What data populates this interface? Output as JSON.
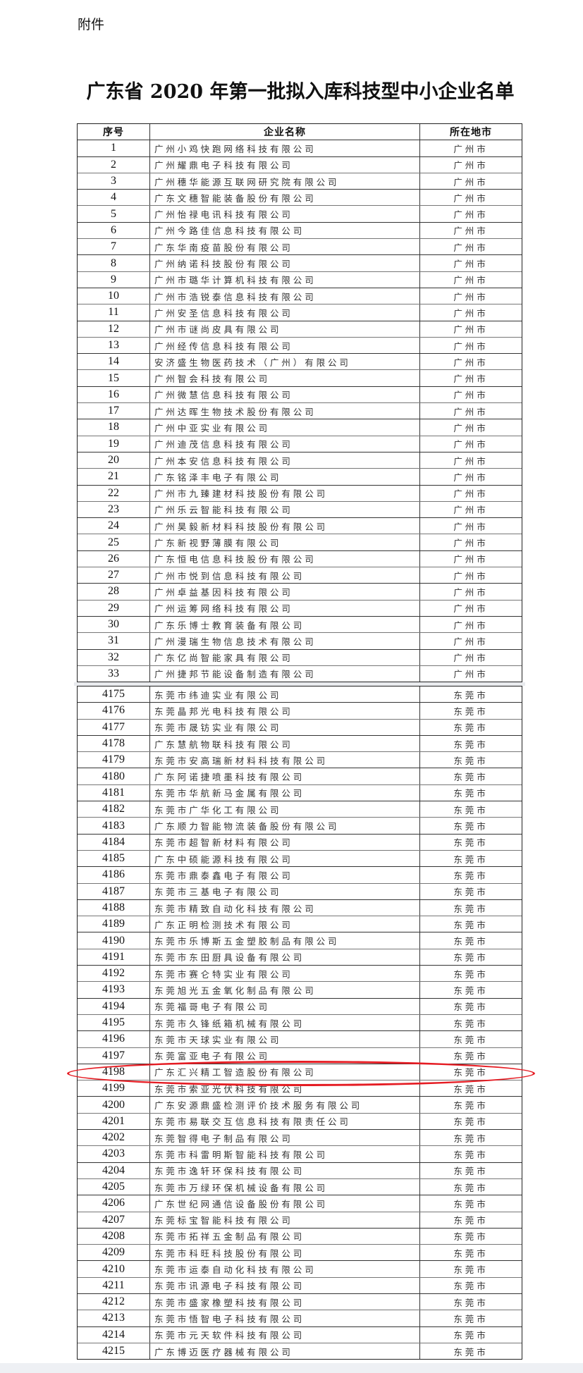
{
  "attachment_label": "附件",
  "title": "广东省 2020 年第一批拟入库科技型中小企业名单",
  "columns": {
    "no": "序号",
    "name": "企业名称",
    "city": "所在地市"
  },
  "highlight_color": "#e51c23",
  "highlighted_row": "4198",
  "section1": [
    {
      "no": "1",
      "name": "广州小鸡快跑网络科技有限公司",
      "city": "广州市"
    },
    {
      "no": "2",
      "name": "广州耀鼎电子科技有限公司",
      "city": "广州市"
    },
    {
      "no": "3",
      "name": "广州穗华能源互联网研究院有限公司",
      "city": "广州市"
    },
    {
      "no": "4",
      "name": "广东文穗智能装备股份有限公司",
      "city": "广州市"
    },
    {
      "no": "5",
      "name": "广州怡禄电讯科技有限公司",
      "city": "广州市"
    },
    {
      "no": "6",
      "name": "广州今路佳信息科技有限公司",
      "city": "广州市"
    },
    {
      "no": "7",
      "name": "广东华南疫苗股份有限公司",
      "city": "广州市"
    },
    {
      "no": "8",
      "name": "广州纳诺科技股份有限公司",
      "city": "广州市"
    },
    {
      "no": "9",
      "name": "广州市璐华计算机科技有限公司",
      "city": "广州市"
    },
    {
      "no": "10",
      "name": "广州市浩锐泰信息科技有限公司",
      "city": "广州市"
    },
    {
      "no": "11",
      "name": "广州安圣信息科技有限公司",
      "city": "广州市"
    },
    {
      "no": "12",
      "name": "广州市谜尚皮具有限公司",
      "city": "广州市"
    },
    {
      "no": "13",
      "name": "广州经传信息科技有限公司",
      "city": "广州市"
    },
    {
      "no": "14",
      "name": "安济盛生物医药技术（广州）有限公司",
      "city": "广州市"
    },
    {
      "no": "15",
      "name": "广州智会科技有限公司",
      "city": "广州市"
    },
    {
      "no": "16",
      "name": "广州微慧信息科技有限公司",
      "city": "广州市"
    },
    {
      "no": "17",
      "name": "广州达晖生物技术股份有限公司",
      "city": "广州市"
    },
    {
      "no": "18",
      "name": "广州中亚实业有限公司",
      "city": "广州市"
    },
    {
      "no": "19",
      "name": "广州迪茂信息科技有限公司",
      "city": "广州市"
    },
    {
      "no": "20",
      "name": "广州本安信息科技有限公司",
      "city": "广州市"
    },
    {
      "no": "21",
      "name": "广东铭泽丰电子有限公司",
      "city": "广州市"
    },
    {
      "no": "22",
      "name": "广州市九臻建材科技股份有限公司",
      "city": "广州市"
    },
    {
      "no": "23",
      "name": "广州乐云智能科技有限公司",
      "city": "广州市"
    },
    {
      "no": "24",
      "name": "广州昊毅新材料科技股份有限公司",
      "city": "广州市"
    },
    {
      "no": "25",
      "name": "广东新视野薄膜有限公司",
      "city": "广州市"
    },
    {
      "no": "26",
      "name": "广东恒电信息科技股份有限公司",
      "city": "广州市"
    },
    {
      "no": "27",
      "name": "广州市悦到信息科技有限公司",
      "city": "广州市"
    },
    {
      "no": "28",
      "name": "广州卓益基因科技有限公司",
      "city": "广州市"
    },
    {
      "no": "29",
      "name": "广州运筹网络科技有限公司",
      "city": "广州市"
    },
    {
      "no": "30",
      "name": "广东乐博士教育装备有限公司",
      "city": "广州市"
    },
    {
      "no": "31",
      "name": "广州漫瑞生物信息技术有限公司",
      "city": "广州市"
    },
    {
      "no": "32",
      "name": "广东亿尚智能家具有限公司",
      "city": "广州市"
    },
    {
      "no": "33",
      "name": "广州捷邦节能设备制造有限公司",
      "city": "广州市"
    }
  ],
  "section2": [
    {
      "no": "4175",
      "name": "东莞市纬迪实业有限公司",
      "city": "东莞市"
    },
    {
      "no": "4176",
      "name": "东莞晶邦光电科技有限公司",
      "city": "东莞市"
    },
    {
      "no": "4177",
      "name": "东莞市晟钫实业有限公司",
      "city": "东莞市"
    },
    {
      "no": "4178",
      "name": "广东慧航物联科技有限公司",
      "city": "东莞市"
    },
    {
      "no": "4179",
      "name": "东莞市安高瑞新材料科技有限公司",
      "city": "东莞市"
    },
    {
      "no": "4180",
      "name": "广东阿诺捷喷墨科技有限公司",
      "city": "东莞市"
    },
    {
      "no": "4181",
      "name": "东莞市华航新马金属有限公司",
      "city": "东莞市"
    },
    {
      "no": "4182",
      "name": "东莞市广华化工有限公司",
      "city": "东莞市"
    },
    {
      "no": "4183",
      "name": "广东顺力智能物流装备股份有限公司",
      "city": "东莞市"
    },
    {
      "no": "4184",
      "name": "东莞市超智新材料有限公司",
      "city": "东莞市"
    },
    {
      "no": "4185",
      "name": "广东中硕能源科技有限公司",
      "city": "东莞市"
    },
    {
      "no": "4186",
      "name": "东莞市鼎泰鑫电子有限公司",
      "city": "东莞市"
    },
    {
      "no": "4187",
      "name": "东莞市三基电子有限公司",
      "city": "东莞市"
    },
    {
      "no": "4188",
      "name": "东莞市精致自动化科技有限公司",
      "city": "东莞市"
    },
    {
      "no": "4189",
      "name": "广东正明检测技术有限公司",
      "city": "东莞市"
    },
    {
      "no": "4190",
      "name": "东莞市乐博斯五金塑胶制品有限公司",
      "city": "东莞市"
    },
    {
      "no": "4191",
      "name": "东莞市东田厨具设备有限公司",
      "city": "东莞市"
    },
    {
      "no": "4192",
      "name": "东莞市赛仑特实业有限公司",
      "city": "东莞市"
    },
    {
      "no": "4193",
      "name": "东莞旭光五金氧化制品有限公司",
      "city": "东莞市"
    },
    {
      "no": "4194",
      "name": "东莞福哥电子有限公司",
      "city": "东莞市"
    },
    {
      "no": "4195",
      "name": "东莞市久锋纸箱机械有限公司",
      "city": "东莞市"
    },
    {
      "no": "4196",
      "name": "东莞市天球实业有限公司",
      "city": "东莞市"
    },
    {
      "no": "4197",
      "name": "东莞富亚电子有限公司",
      "city": "东莞市"
    },
    {
      "no": "4198",
      "name": "广东汇兴精工智造股份有限公司",
      "city": "东莞市"
    },
    {
      "no": "4199",
      "name": "东莞市索亚光伏科技有限公司",
      "city": "东莞市"
    },
    {
      "no": "4200",
      "name": "广东安源鼎盛检测评价技术服务有限公司",
      "city": "东莞市"
    },
    {
      "no": "4201",
      "name": "东莞市易联交互信息科技有限责任公司",
      "city": "东莞市"
    },
    {
      "no": "4202",
      "name": "东莞智得电子制品有限公司",
      "city": "东莞市"
    },
    {
      "no": "4203",
      "name": "东莞市科雷明斯智能科技有限公司",
      "city": "东莞市"
    },
    {
      "no": "4204",
      "name": "东莞市逸轩环保科技有限公司",
      "city": "东莞市"
    },
    {
      "no": "4205",
      "name": "东莞市万绿环保机械设备有限公司",
      "city": "东莞市"
    },
    {
      "no": "4206",
      "name": "广东世纪网通信设备股份有限公司",
      "city": "东莞市"
    },
    {
      "no": "4207",
      "name": "东莞标宝智能科技有限公司",
      "city": "东莞市"
    },
    {
      "no": "4208",
      "name": "东莞市拓祥五金制品有限公司",
      "city": "东莞市"
    },
    {
      "no": "4209",
      "name": "东莞市科旺科技股份有限公司",
      "city": "东莞市"
    },
    {
      "no": "4210",
      "name": "东莞市运泰自动化科技有限公司",
      "city": "东莞市"
    },
    {
      "no": "4211",
      "name": "东莞市讯源电子科技有限公司",
      "city": "东莞市"
    },
    {
      "no": "4212",
      "name": "东莞市盛家橡塑科技有限公司",
      "city": "东莞市"
    },
    {
      "no": "4213",
      "name": "东莞市悟智电子科技有限公司",
      "city": "东莞市"
    },
    {
      "no": "4214",
      "name": "东莞市元天软件科技有限公司",
      "city": "东莞市"
    },
    {
      "no": "4215",
      "name": "广东博迈医疗器械有限公司",
      "city": "东莞市"
    }
  ]
}
